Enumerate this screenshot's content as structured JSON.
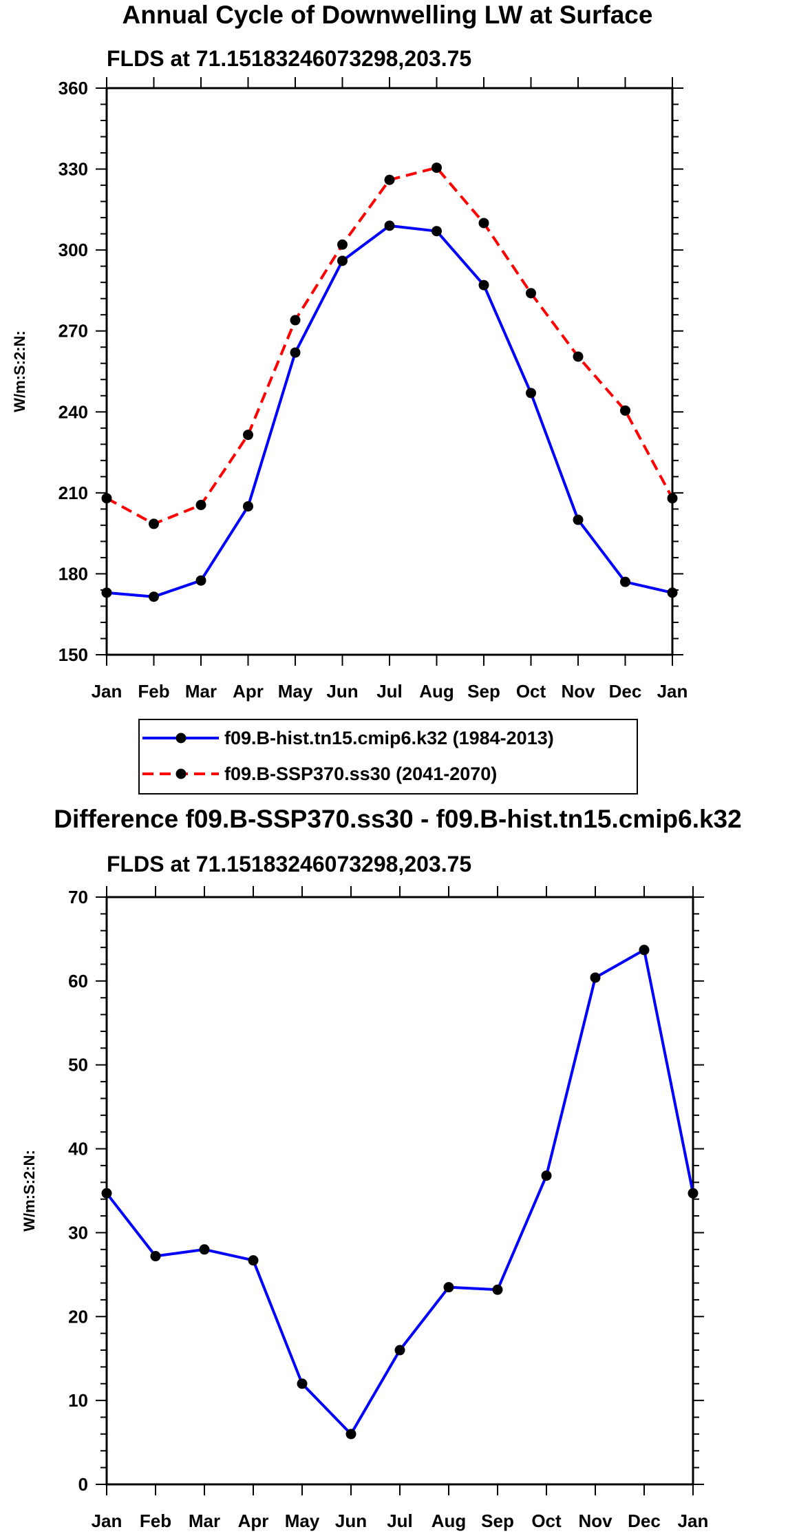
{
  "chart_data": [
    {
      "type": "line",
      "title": "Annual Cycle of Downwelling LW at Surface",
      "subtitle": "FLDS at 71.15183246073298,203.75",
      "xlabel": "",
      "ylabel": "W/m:S:2:N:",
      "categories": [
        "Jan",
        "Feb",
        "Mar",
        "Apr",
        "May",
        "Jun",
        "Jul",
        "Aug",
        "Sep",
        "Oct",
        "Nov",
        "Dec",
        "Jan"
      ],
      "ylim": [
        150,
        360
      ],
      "yticks": [
        150,
        180,
        210,
        240,
        270,
        300,
        330,
        360
      ],
      "yminor_step": 6,
      "grid": false,
      "series": [
        {
          "name": "f09.B-hist.tn15.cmip6.k32 (1984-2013)",
          "color": "#0000ff",
          "dash": "solid",
          "values": [
            173,
            171.5,
            177.5,
            205,
            262,
            296,
            309,
            307,
            287,
            247,
            200,
            177,
            173
          ]
        },
        {
          "name": "f09.B-SSP370.ss30 (2041-2070)",
          "color": "#ff0000",
          "dash": "dashed",
          "values": [
            208,
            198.5,
            205.5,
            231.5,
            274,
            302,
            326,
            330.5,
            310,
            284,
            260.5,
            240.5,
            208
          ]
        }
      ],
      "legend": {
        "placement": "bottom",
        "entries": [
          "f09.B-hist.tn15.cmip6.k32 (1984-2013)",
          "f09.B-SSP370.ss30 (2041-2070)"
        ]
      }
    },
    {
      "type": "line",
      "title": "Difference f09.B-SSP370.ss30 - f09.B-hist.tn15.cmip6.k32",
      "subtitle": "FLDS at 71.15183246073298,203.75",
      "xlabel": "",
      "ylabel": "W/m:S:2:N:",
      "categories": [
        "Jan",
        "Feb",
        "Mar",
        "Apr",
        "May",
        "Jun",
        "Jul",
        "Aug",
        "Sep",
        "Oct",
        "Nov",
        "Dec",
        "Jan"
      ],
      "ylim": [
        0,
        70
      ],
      "yticks": [
        0,
        10,
        20,
        30,
        40,
        50,
        60,
        70
      ],
      "yminor_step": 2,
      "grid": false,
      "series": [
        {
          "name": "Difference",
          "color": "#0000ff",
          "dash": "solid",
          "values": [
            34.7,
            27.2,
            28,
            26.7,
            12,
            6,
            16,
            23.5,
            23.2,
            36.8,
            60.4,
            63.7,
            34.7
          ]
        }
      ]
    }
  ]
}
